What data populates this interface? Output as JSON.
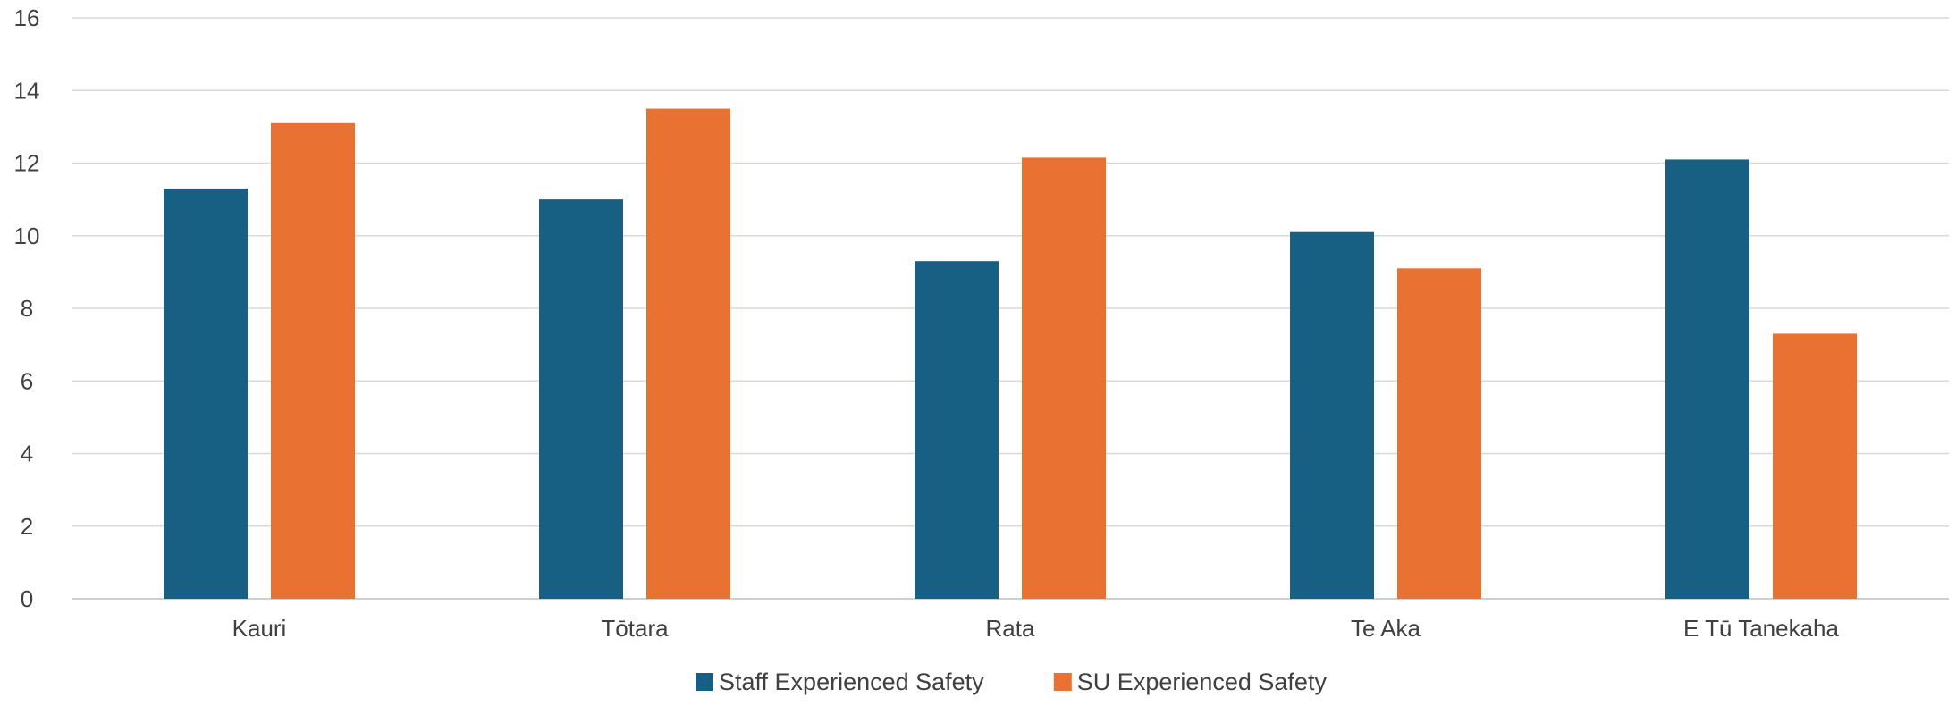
{
  "chart_data": {
    "type": "bar",
    "title": "",
    "xlabel": "",
    "ylabel": "",
    "categories": [
      "Kauri",
      "Tōtara",
      "Rata",
      "Te Aka",
      "E Tū Tanekaha"
    ],
    "series": [
      {
        "name": "Staff Experienced Safety",
        "color": "#185f84",
        "values": [
          11.3,
          11.0,
          9.3,
          10.1,
          12.1
        ]
      },
      {
        "name": "SU Experienced Safety",
        "color": "#e97132",
        "values": [
          13.1,
          13.5,
          12.15,
          9.1,
          7.3
        ]
      }
    ],
    "ylim": [
      0,
      16
    ],
    "yticks": [
      0,
      2,
      4,
      6,
      8,
      10,
      12,
      14,
      16
    ],
    "grid": true,
    "legend_position": "bottom"
  }
}
